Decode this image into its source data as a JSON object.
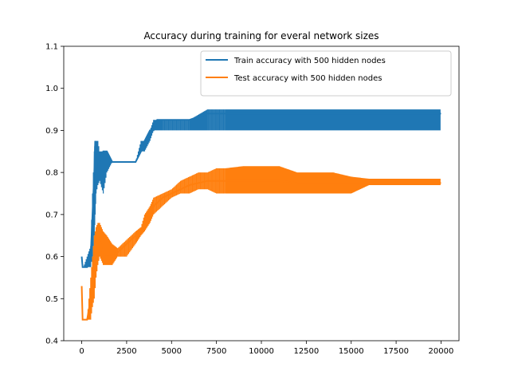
{
  "chart_data": {
    "type": "line",
    "title": "Accuracy during training for everal network sizes",
    "xlabel": "",
    "ylabel": "",
    "xlim": [
      -1000,
      21000
    ],
    "ylim": [
      0.4,
      1.1
    ],
    "xticks": [
      0,
      2500,
      5000,
      7500,
      10000,
      12500,
      15000,
      17500,
      20000
    ],
    "xtick_labels": [
      "0",
      "2500",
      "5000",
      "7500",
      "10000",
      "12500",
      "15000",
      "17500",
      "20000"
    ],
    "yticks": [
      0.4,
      0.5,
      0.6,
      0.7,
      0.8,
      0.9,
      1.0,
      1.1
    ],
    "ytick_labels": [
      "0.4",
      "0.5",
      "0.6",
      "0.7",
      "0.8",
      "0.9",
      "1.0",
      "1.1"
    ],
    "grid": false,
    "legend_position": "top-right",
    "series": [
      {
        "name": "Train accuracy with 500 hidden nodes",
        "color": "#1f77b4",
        "x": [
          0,
          50,
          100,
          300,
          500,
          600,
          700,
          750,
          800,
          900,
          1000,
          1200,
          1400,
          1700,
          2000,
          2500,
          3000,
          3300,
          3500,
          3800,
          4000,
          4200,
          4500,
          5000,
          5500,
          6000,
          7000,
          7500,
          8000,
          9000,
          10000,
          11000,
          12000,
          13000,
          14000,
          15000,
          16000,
          17000,
          18000,
          19000,
          20000
        ],
        "y": [
          0.6,
          0.575,
          0.575,
          0.575,
          0.6,
          0.7,
          0.8,
          0.875,
          0.8,
          0.85,
          0.825,
          0.85,
          0.85,
          0.825,
          0.825,
          0.825,
          0.825,
          0.85,
          0.875,
          0.9,
          0.9,
          0.925,
          0.925,
          0.925,
          0.925,
          0.925,
          0.94,
          0.94,
          0.94,
          0.94,
          0.94,
          0.94,
          0.94,
          0.94,
          0.94,
          0.94,
          0.94,
          0.94,
          0.94,
          0.94,
          0.94
        ],
        "band_lower": [
          0.6,
          0.575,
          0.575,
          0.575,
          0.575,
          0.6,
          0.65,
          0.7,
          0.75,
          0.77,
          0.78,
          0.75,
          0.8,
          0.825,
          0.825,
          0.825,
          0.825,
          0.85,
          0.85,
          0.875,
          0.9,
          0.9,
          0.9,
          0.9,
          0.9,
          0.9,
          0.9,
          0.9,
          0.9,
          0.9,
          0.9,
          0.9,
          0.9,
          0.9,
          0.9,
          0.9,
          0.9,
          0.9,
          0.9,
          0.9,
          0.9
        ],
        "band_upper": [
          0.6,
          0.575,
          0.575,
          0.6,
          0.625,
          0.75,
          0.85,
          0.875,
          0.875,
          0.875,
          0.85,
          0.85,
          0.85,
          0.825,
          0.825,
          0.825,
          0.825,
          0.875,
          0.875,
          0.9,
          0.925,
          0.925,
          0.925,
          0.925,
          0.925,
          0.925,
          0.95,
          0.95,
          0.95,
          0.95,
          0.95,
          0.95,
          0.95,
          0.95,
          0.95,
          0.95,
          0.95,
          0.95,
          0.95,
          0.95,
          0.95
        ]
      },
      {
        "name": "Test accuracy with 500 hidden nodes",
        "color": "#ff7f0e",
        "x": [
          0,
          50,
          100,
          300,
          500,
          600,
          700,
          800,
          900,
          1000,
          1200,
          1400,
          1700,
          2000,
          2500,
          3000,
          3300,
          3500,
          3800,
          4000,
          4500,
          5000,
          5500,
          6000,
          6500,
          7000,
          7500,
          8000,
          9000,
          10000,
          11000,
          12000,
          13000,
          14000,
          15000,
          16000,
          17000,
          18000,
          19000,
          20000
        ],
        "y": [
          0.53,
          0.45,
          0.45,
          0.45,
          0.5,
          0.55,
          0.6,
          0.62,
          0.65,
          0.64,
          0.6,
          0.6,
          0.6,
          0.61,
          0.63,
          0.65,
          0.66,
          0.68,
          0.7,
          0.72,
          0.74,
          0.75,
          0.76,
          0.77,
          0.775,
          0.78,
          0.78,
          0.78,
          0.78,
          0.78,
          0.78,
          0.775,
          0.775,
          0.775,
          0.775,
          0.775,
          0.775,
          0.775,
          0.775,
          0.775
        ],
        "band_lower": [
          0.53,
          0.45,
          0.45,
          0.45,
          0.45,
          0.48,
          0.5,
          0.55,
          0.58,
          0.6,
          0.58,
          0.58,
          0.58,
          0.6,
          0.6,
          0.63,
          0.65,
          0.66,
          0.68,
          0.7,
          0.72,
          0.74,
          0.75,
          0.75,
          0.76,
          0.76,
          0.75,
          0.75,
          0.75,
          0.75,
          0.75,
          0.75,
          0.75,
          0.75,
          0.75,
          0.77,
          0.77,
          0.77,
          0.77,
          0.77
        ],
        "band_upper": [
          0.53,
          0.45,
          0.45,
          0.45,
          0.55,
          0.6,
          0.65,
          0.67,
          0.68,
          0.68,
          0.66,
          0.65,
          0.63,
          0.62,
          0.64,
          0.66,
          0.67,
          0.7,
          0.72,
          0.74,
          0.75,
          0.76,
          0.78,
          0.79,
          0.8,
          0.8,
          0.81,
          0.81,
          0.815,
          0.815,
          0.815,
          0.8,
          0.8,
          0.8,
          0.79,
          0.785,
          0.785,
          0.785,
          0.785,
          0.785
        ]
      }
    ]
  }
}
